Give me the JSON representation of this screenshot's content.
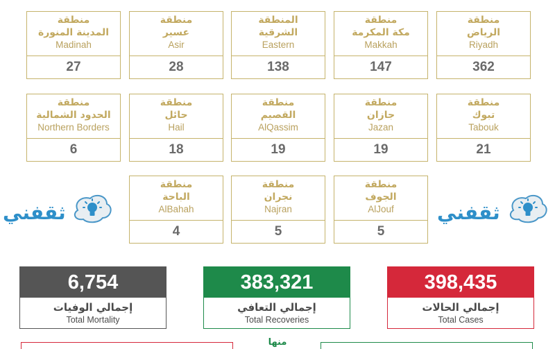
{
  "regions": [
    {
      "ar1": "منطقة",
      "ar2": "الرياض",
      "en": "Riyadh",
      "count": "362"
    },
    {
      "ar1": "منطقة",
      "ar2": "مكة المكرمة",
      "en": "Makkah",
      "count": "147"
    },
    {
      "ar1": "المنطقة",
      "ar2": "الشرقية",
      "en": "Eastern",
      "count": "138"
    },
    {
      "ar1": "منطقة",
      "ar2": "عسير",
      "en": "Asir",
      "count": "28"
    },
    {
      "ar1": "منطقة",
      "ar2": "المدينة المنورة",
      "en": "Madinah",
      "count": "27"
    },
    {
      "ar1": "منطقة",
      "ar2": "تبوك",
      "en": "Tabouk",
      "count": "21"
    },
    {
      "ar1": "منطقة",
      "ar2": "جازان",
      "en": "Jazan",
      "count": "19"
    },
    {
      "ar1": "منطقة",
      "ar2": "القصيم",
      "en": "AlQassim",
      "count": "19"
    },
    {
      "ar1": "منطقة",
      "ar2": "حائل",
      "en": "Hail",
      "count": "18"
    },
    {
      "ar1": "منطقة",
      "ar2": "الحدود الشمالية",
      "en": "Northern Borders",
      "count": "6"
    },
    {
      "ar1": "منطقة",
      "ar2": "الجوف",
      "en": "AlJouf",
      "count": "5"
    },
    {
      "ar1": "منطقة",
      "ar2": "نجران",
      "en": "Najran",
      "count": "5"
    },
    {
      "ar1": "منطقة",
      "ar2": "الباحة",
      "en": "AlBahah",
      "count": "4"
    }
  ],
  "totals": {
    "cases": {
      "value": "398,435",
      "ar": "إجمالي الحالات",
      "en": "Total Cases",
      "color": "#d5283a"
    },
    "recoveries": {
      "value": "383,321",
      "ar": "إجمالي التعافي",
      "en": "Total Recoveries",
      "color": "#1e8a4a"
    },
    "mortality": {
      "value": "6,754",
      "ar": "إجمالي الوفيات",
      "en": "Total Mortality",
      "color": "#555555"
    }
  },
  "watermark": {
    "text": "ثقفني",
    "icon": "lightbulb-icon"
  },
  "bottom": {
    "mid_text": "منها"
  }
}
